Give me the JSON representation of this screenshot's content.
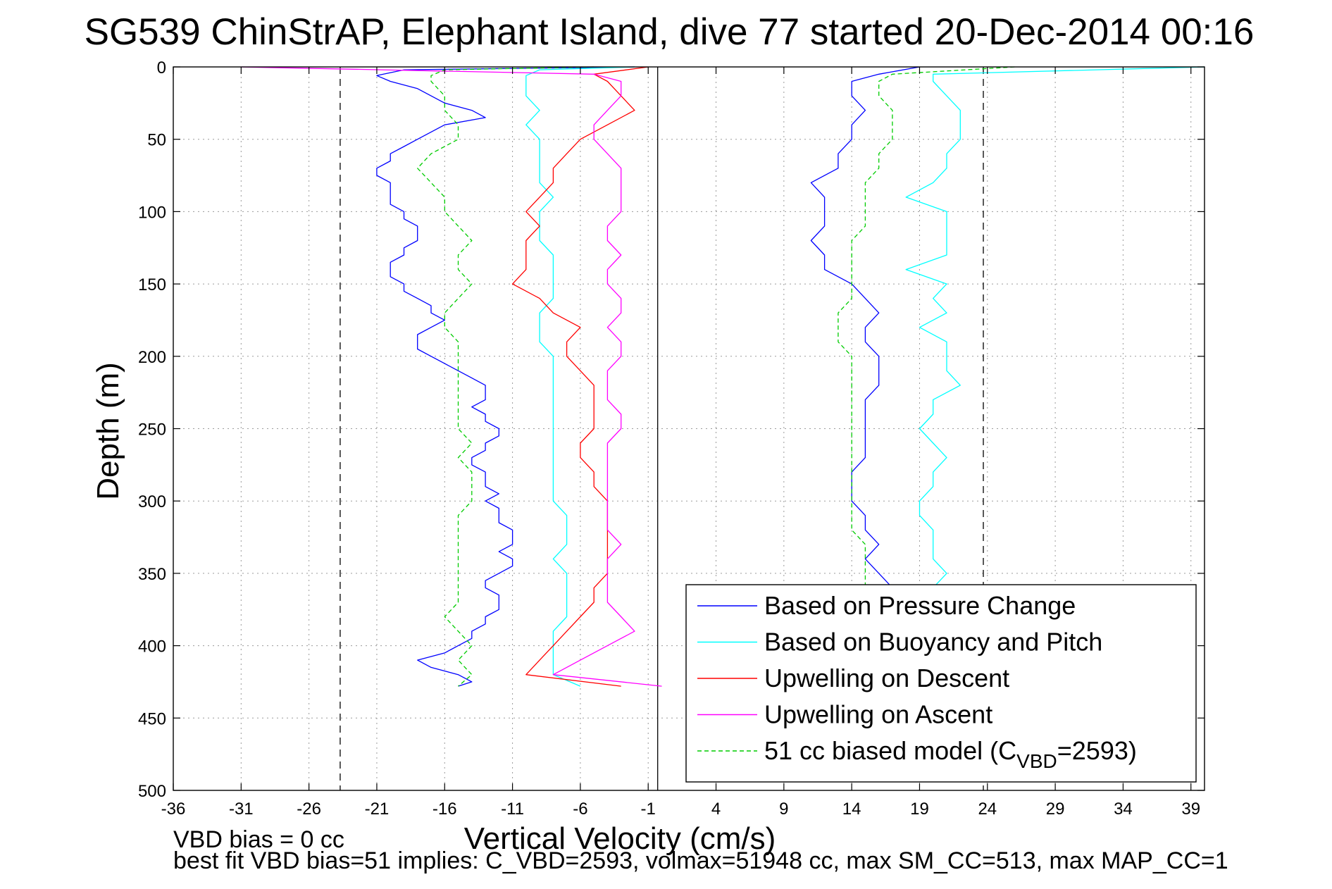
{
  "chart_data": {
    "type": "line",
    "title": "SG539 ChinStrAP, Elephant Island, dive 77 started 20-Dec-2014 00:16",
    "xlabel": "Vertical Velocity (cm/s)",
    "ylabel": "Depth (m)",
    "xlim": [
      -36,
      40
    ],
    "ylim": [
      0,
      500
    ],
    "y_reversed": true,
    "x_ticks": [
      -36,
      -31,
      -26,
      -21,
      -16,
      -11,
      -6,
      -1,
      4,
      9,
      14,
      19,
      24,
      29,
      34,
      39
    ],
    "y_ticks": [
      0,
      50,
      100,
      150,
      200,
      250,
      300,
      350,
      400,
      450,
      500
    ],
    "grid": "dotted",
    "legend_position": "bottom-right",
    "reference_lines": [
      {
        "x": -23.7,
        "style": "dashed"
      },
      {
        "x": -0.3,
        "style": "solid"
      },
      {
        "x": 23.7,
        "style": "dashed"
      }
    ],
    "series": [
      {
        "name": "Based on Pressure Change",
        "color": "#0000ff",
        "style": "solid",
        "depths": [
          0,
          2,
          6,
          10,
          15,
          20,
          25,
          30,
          35,
          40,
          45,
          50,
          55,
          60,
          65,
          70,
          75,
          80,
          85,
          90,
          95,
          100,
          105,
          110,
          115,
          120,
          125,
          130,
          135,
          140,
          145,
          150,
          155,
          160,
          165,
          170,
          175,
          180,
          185,
          190,
          195,
          200,
          205,
          210,
          215,
          220,
          225,
          230,
          235,
          240,
          245,
          250,
          255,
          260,
          265,
          270,
          275,
          280,
          285,
          290,
          295,
          300,
          305,
          310,
          315,
          320,
          325,
          330,
          335,
          340,
          345,
          350,
          355,
          360,
          365,
          370,
          375,
          380,
          385,
          390,
          395,
          400,
          405,
          410,
          415,
          420,
          425,
          428
        ],
        "down_values": [
          -2,
          -19,
          -21,
          -20,
          -18,
          -17,
          -16,
          -14,
          -13,
          -16,
          -17,
          -18,
          -19,
          -20,
          -20,
          -21,
          -21,
          -20,
          -20,
          -20,
          -20,
          -19,
          -19,
          -18,
          -18,
          -18,
          -19,
          -19,
          -20,
          -20,
          -20,
          -19,
          -19,
          -18,
          -17,
          -17,
          -16,
          -17,
          -18,
          -18,
          -18,
          -17,
          -16,
          -15,
          -14,
          -13,
          -13,
          -13,
          -14,
          -13,
          -13,
          -12,
          -12,
          -13,
          -13,
          -14,
          -14,
          -13,
          -13,
          -13,
          -12,
          -13,
          -12,
          -12,
          -12,
          -11,
          -11,
          -11,
          -12,
          -11,
          -11,
          -12,
          -13,
          -13,
          -12,
          -12,
          -12,
          -13,
          -13,
          -14,
          -14,
          -15,
          -16,
          -18,
          -17,
          -15,
          -14,
          -15
        ],
        "up_depths": [
          0,
          5,
          10,
          20,
          30,
          40,
          50,
          60,
          70,
          80,
          90,
          100,
          110,
          120,
          130,
          140,
          150,
          160,
          170,
          180,
          190,
          200,
          210,
          220,
          230,
          240,
          250,
          260,
          270,
          280,
          290,
          300,
          310,
          320,
          330,
          340,
          350,
          360
        ],
        "up_values": [
          19,
          16,
          14,
          14,
          15,
          14,
          14,
          13,
          13,
          11,
          12,
          12,
          12,
          11,
          12,
          12,
          14,
          15,
          16,
          15,
          15,
          16,
          16,
          16,
          15,
          15,
          15,
          15,
          15,
          14,
          14,
          14,
          15,
          15,
          16,
          15,
          16,
          17
        ]
      },
      {
        "name": "Based on Buoyancy and Pitch",
        "color": "#00ffff",
        "style": "solid",
        "depths": [
          0,
          2,
          6,
          10,
          20,
          30,
          40,
          50,
          60,
          70,
          80,
          90,
          100,
          110,
          120,
          130,
          140,
          150,
          160,
          170,
          180,
          190,
          200,
          210,
          220,
          230,
          240,
          250,
          260,
          270,
          280,
          290,
          300,
          310,
          320,
          330,
          340,
          350,
          360,
          370,
          380,
          390,
          400,
          410,
          420,
          428
        ],
        "down_values": [
          -2,
          -9,
          -10,
          -10,
          -10,
          -9,
          -10,
          -9,
          -9,
          -9,
          -9,
          -8,
          -9,
          -9,
          -9,
          -8,
          -8,
          -8,
          -8,
          -9,
          -9,
          -9,
          -8,
          -8,
          -8,
          -8,
          -8,
          -8,
          -8,
          -8,
          -8,
          -8,
          -8,
          -7,
          -7,
          -7,
          -8,
          -7,
          -7,
          -7,
          -7,
          -8,
          -8,
          -8,
          -8,
          -6
        ],
        "up_depths": [
          0,
          5,
          10,
          20,
          30,
          40,
          50,
          60,
          70,
          80,
          90,
          100,
          110,
          120,
          130,
          140,
          150,
          160,
          170,
          180,
          190,
          200,
          210,
          220,
          230,
          240,
          250,
          260,
          270,
          280,
          290,
          300,
          310,
          320,
          330,
          340,
          350,
          360
        ],
        "up_values": [
          40,
          20,
          20,
          21,
          22,
          22,
          22,
          21,
          21,
          20,
          18,
          21,
          21,
          21,
          21,
          18,
          21,
          20,
          21,
          19,
          21,
          21,
          21,
          22,
          20,
          20,
          19,
          20,
          21,
          20,
          20,
          19,
          19,
          20,
          20,
          20,
          21,
          20
        ]
      },
      {
        "name": "Upwelling on Descent",
        "color": "#ff0000",
        "style": "solid",
        "depths": [
          0,
          5,
          10,
          20,
          30,
          40,
          50,
          60,
          70,
          80,
          90,
          100,
          110,
          120,
          130,
          140,
          150,
          160,
          170,
          180,
          190,
          200,
          210,
          220,
          230,
          240,
          250,
          260,
          270,
          280,
          290,
          300,
          310,
          320,
          330,
          340,
          350,
          360,
          370,
          380,
          390,
          400,
          410,
          420,
          428
        ],
        "values": [
          -1,
          -5,
          -4,
          -3,
          -2,
          -4,
          -6,
          -7,
          -8,
          -8,
          -9,
          -10,
          -9,
          -10,
          -10,
          -10,
          -11,
          -9,
          -8,
          -6,
          -7,
          -7,
          -6,
          -5,
          -5,
          -5,
          -5,
          -6,
          -6,
          -5,
          -5,
          -4,
          -4,
          -4,
          -4,
          -4,
          -4,
          -5,
          -5,
          -6,
          -7,
          -8,
          -9,
          -10,
          -3
        ]
      },
      {
        "name": "Upwelling on Ascent",
        "color": "#ff00ff",
        "style": "solid",
        "depths": [
          0,
          5,
          10,
          20,
          30,
          40,
          50,
          60,
          70,
          80,
          90,
          100,
          110,
          120,
          130,
          140,
          150,
          160,
          170,
          180,
          190,
          200,
          210,
          220,
          230,
          240,
          250,
          260,
          270,
          280,
          290,
          300,
          310,
          320,
          330,
          340,
          350,
          360,
          370,
          380,
          390,
          400,
          410,
          420,
          428
        ],
        "values": [
          -31,
          -5,
          -3,
          -3,
          -4,
          -5,
          -5,
          -4,
          -3,
          -3,
          -3,
          -3,
          -4,
          -4,
          -3,
          -4,
          -4,
          -3,
          -3,
          -4,
          -3,
          -3,
          -4,
          -4,
          -4,
          -3,
          -3,
          -4,
          -4,
          -4,
          -4,
          -4,
          -4,
          -4,
          -3,
          -4,
          -4,
          -4,
          -4,
          -3,
          -2,
          -4,
          -6,
          -8,
          0
        ]
      },
      {
        "name": "51 cc biased model (C_VBD=2593)",
        "color": "#00cc00",
        "style": "dashed",
        "depths": [
          0,
          2,
          6,
          10,
          20,
          30,
          40,
          50,
          60,
          70,
          80,
          90,
          100,
          110,
          120,
          130,
          140,
          150,
          160,
          170,
          180,
          190,
          200,
          210,
          220,
          230,
          240,
          250,
          260,
          270,
          280,
          290,
          300,
          310,
          320,
          330,
          340,
          350,
          360,
          370,
          380,
          390,
          400,
          410,
          420,
          428
        ],
        "down_values": [
          -5,
          -16,
          -17,
          -17,
          -16,
          -16,
          -15,
          -15,
          -17,
          -18,
          -17,
          -16,
          -16,
          -15,
          -14,
          -15,
          -15,
          -14,
          -15,
          -16,
          -16,
          -15,
          -15,
          -15,
          -15,
          -15,
          -15,
          -15,
          -14,
          -15,
          -14,
          -14,
          -14,
          -15,
          -15,
          -15,
          -15,
          -15,
          -15,
          -15,
          -16,
          -15,
          -14,
          -15,
          -14,
          -15
        ],
        "up_depths": [
          0,
          5,
          10,
          20,
          30,
          40,
          50,
          60,
          70,
          80,
          90,
          100,
          110,
          120,
          130,
          140,
          150,
          160,
          170,
          180,
          190,
          200,
          210,
          220,
          230,
          240,
          250,
          260,
          270,
          280,
          290,
          300,
          310,
          320,
          330,
          340,
          350,
          360
        ],
        "up_values": [
          26,
          17,
          16,
          16,
          17,
          17,
          17,
          16,
          16,
          15,
          15,
          15,
          15,
          14,
          14,
          14,
          14,
          14,
          13,
          13,
          13,
          14,
          14,
          14,
          14,
          14,
          14,
          14,
          14,
          14,
          14,
          14,
          14,
          14,
          15,
          15,
          15,
          15
        ]
      }
    ],
    "legend": {
      "entries": [
        {
          "label": "Based on Pressure Change",
          "color": "#0000ff",
          "style": "solid"
        },
        {
          "label": "Based on Buoyancy and Pitch",
          "color": "#00ffff",
          "style": "solid"
        },
        {
          "label": "Upwelling on Descent",
          "color": "#ff0000",
          "style": "solid"
        },
        {
          "label": "Upwelling on Ascent",
          "color": "#ff00ff",
          "style": "solid"
        },
        {
          "label_main": "51 cc biased model (C",
          "label_sub": "VBD",
          "label_tail": "=2593)",
          "color": "#00cc00",
          "style": "dashed"
        }
      ]
    }
  },
  "footer": {
    "line1": "VBD bias = 0 cc",
    "line2": "best fit VBD bias=51 implies: C_VBD=2593, volmax=51948 cc, max SM_CC=513, max MAP_CC=1"
  }
}
